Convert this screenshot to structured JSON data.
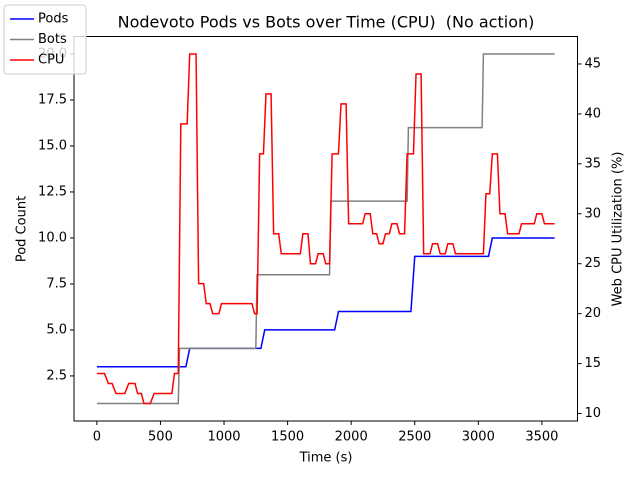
{
  "chart_data": {
    "type": "line",
    "title": "Nodevoto Pods vs Bots over Time (CPU)  (No action)",
    "xlabel": "Time (s)",
    "ylabel": "Pod Count",
    "y2label": "Web CPU Utilization (%)",
    "xlim": [
      -180,
      3780
    ],
    "xticks": [
      0,
      500,
      1000,
      1500,
      2000,
      2500,
      3000,
      3500
    ],
    "ylim": [
      0.05,
      20.95
    ],
    "yticks": [
      {
        "value": 2.5,
        "label": "2.5"
      },
      {
        "value": 5,
        "label": "5.0"
      },
      {
        "value": 7.5,
        "label": "7.5"
      },
      {
        "value": 10,
        "label": "10.0"
      },
      {
        "value": 12.5,
        "label": "12.5"
      },
      {
        "value": 15,
        "label": "15.0"
      },
      {
        "value": 17.5,
        "label": "17.5"
      },
      {
        "value": 20,
        "label": "20.0"
      }
    ],
    "y2lim": [
      9.25,
      47.75
    ],
    "y2ticks": [
      10,
      15,
      20,
      25,
      30,
      35,
      40,
      45
    ],
    "legend": "upper left",
    "series": [
      {
        "name": "Pods",
        "color": "#0000ff",
        "x": [
          0,
          700,
          730,
          1290,
          1320,
          1870,
          1900,
          2470,
          2500,
          3080,
          3110,
          3600
        ],
        "values": [
          3,
          3,
          4,
          4,
          5,
          5,
          6,
          6,
          9,
          9,
          10,
          10
        ]
      },
      {
        "name": "Bots",
        "color": "#808080",
        "x": [
          0,
          640,
          650,
          1250,
          1260,
          1830,
          1840,
          2440,
          2450,
          3030,
          3040,
          3600
        ],
        "values": [
          1,
          1,
          4,
          4,
          8,
          8,
          12,
          12,
          16,
          16,
          20,
          20
        ]
      },
      {
        "name": "CPU",
        "color": "#ff0000",
        "axis": "y2",
        "x": [
          0,
          60,
          90,
          120,
          150,
          220,
          250,
          300,
          320,
          350,
          370,
          420,
          450,
          590,
          610,
          640,
          660,
          710,
          730,
          780,
          800,
          840,
          860,
          890,
          910,
          960,
          980,
          1220,
          1240,
          1260,
          1280,
          1310,
          1330,
          1370,
          1390,
          1430,
          1450,
          1600,
          1620,
          1660,
          1680,
          1720,
          1740,
          1780,
          1800,
          1830,
          1850,
          1900,
          1920,
          1960,
          1980,
          2090,
          2110,
          2150,
          2170,
          2200,
          2220,
          2250,
          2270,
          2300,
          2320,
          2360,
          2380,
          2420,
          2440,
          2490,
          2510,
          2550,
          2570,
          2620,
          2640,
          2680,
          2700,
          2740,
          2760,
          2800,
          2820,
          3040,
          3060,
          3090,
          3110,
          3150,
          3170,
          3210,
          3230,
          3320,
          3340,
          3440,
          3460,
          3500,
          3520,
          3600
        ],
        "values": [
          14,
          14,
          13,
          13,
          12,
          12,
          13,
          13,
          12,
          12,
          11,
          11,
          12,
          12,
          14,
          14,
          39,
          39,
          46,
          46,
          23,
          23,
          21,
          21,
          20,
          20,
          21,
          21,
          20,
          20,
          36,
          36,
          42,
          42,
          28,
          28,
          26,
          26,
          28,
          28,
          25,
          25,
          26,
          26,
          25,
          25,
          36,
          36,
          41,
          41,
          29,
          29,
          30,
          30,
          28,
          28,
          27,
          27,
          28,
          28,
          29,
          29,
          28,
          28,
          36,
          36,
          44,
          44,
          26,
          26,
          27,
          27,
          26,
          26,
          27,
          27,
          26,
          26,
          32,
          32,
          36,
          36,
          30,
          30,
          28,
          28,
          29,
          29,
          30,
          30,
          29,
          29
        ]
      }
    ]
  }
}
